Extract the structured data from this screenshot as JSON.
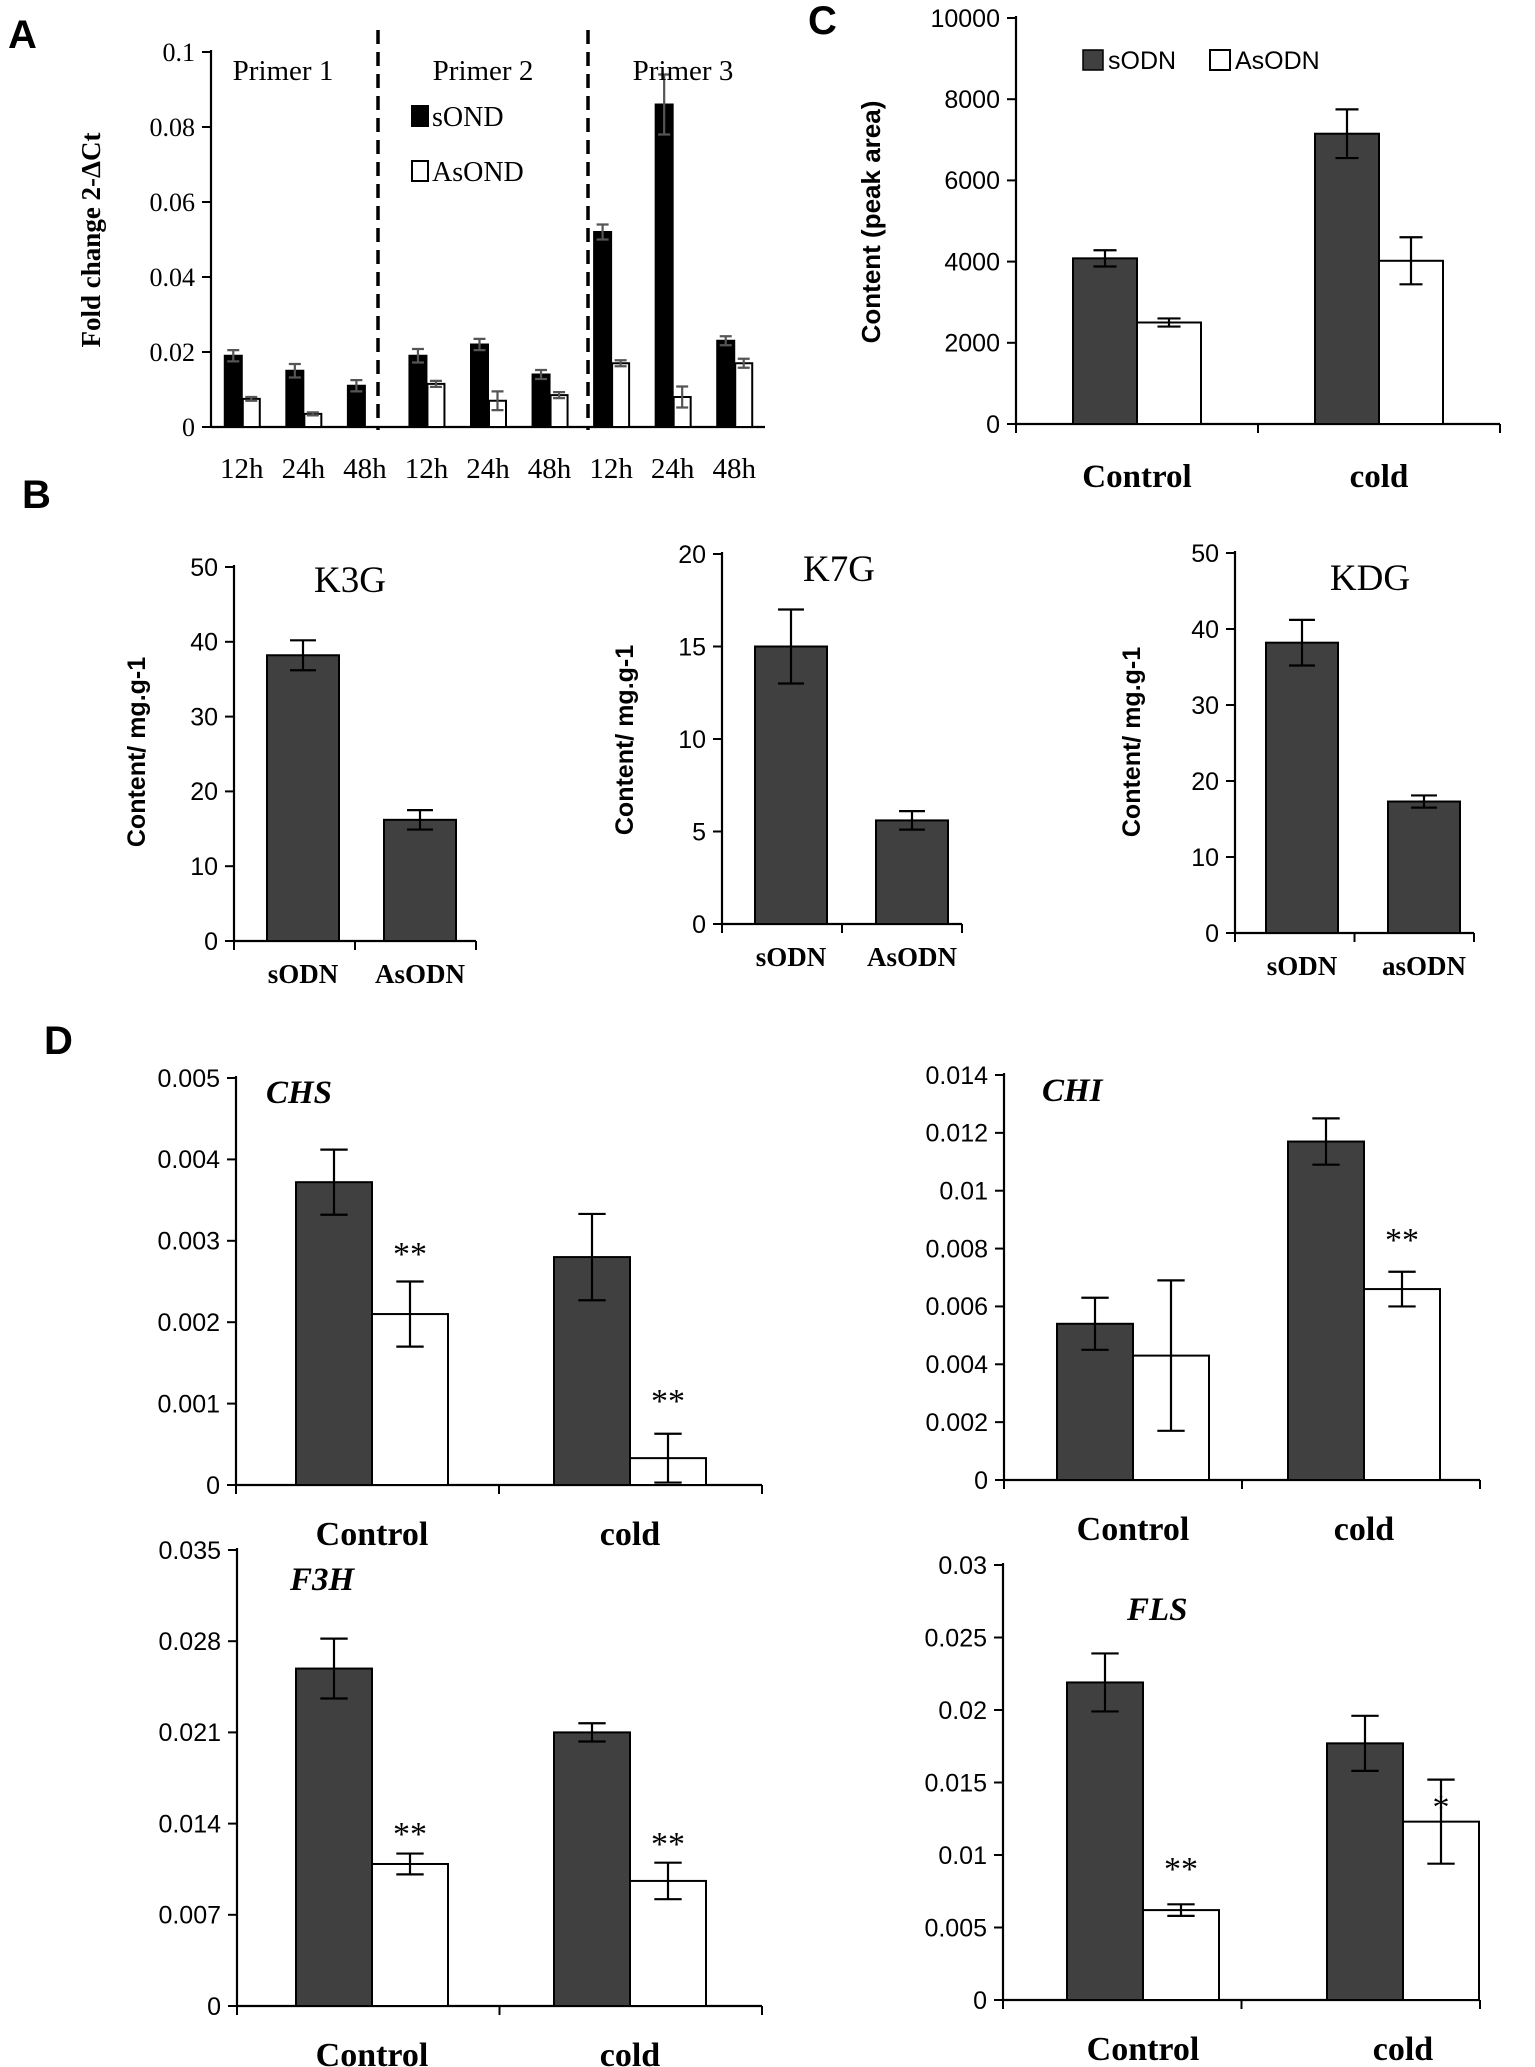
{
  "colors": {
    "s": "#404040",
    "as": "#ffffff",
    "solidA": "#000000",
    "stroke": "#000000"
  },
  "panels": {
    "A": "A",
    "B": "B",
    "C": "C",
    "D": "D"
  },
  "chart_data": [
    {
      "id": "A",
      "type": "bar",
      "ylabel": "Fold change 2-ΔCt",
      "ylim": [
        0,
        0.1
      ],
      "yticks": [
        "0",
        "0.02",
        "0.04",
        "0.06",
        "0.08",
        "0.1"
      ],
      "groups": [
        "Primer 1",
        "Primer 2",
        "Primer 3"
      ],
      "categories": [
        "12h",
        "24h",
        "48h",
        "12h",
        "24h",
        "48h",
        "12h",
        "24h",
        "48h"
      ],
      "legend": [
        "sOND",
        "AsOND"
      ],
      "series": [
        {
          "name": "sOND",
          "values": [
            0.019,
            0.015,
            0.011,
            0.019,
            0.022,
            0.014,
            0.052,
            0.086,
            0.023
          ],
          "errors": [
            0.0015,
            0.0018,
            0.0015,
            0.0018,
            0.0015,
            0.0012,
            0.002,
            0.008,
            0.0012
          ]
        },
        {
          "name": "AsOND",
          "values": [
            0.0075,
            0.0035,
            0.0,
            0.0115,
            0.007,
            0.0085,
            0.017,
            0.008,
            0.017
          ],
          "errors": [
            0.0005,
            0.0004,
            0.0,
            0.0008,
            0.0025,
            0.0008,
            0.0008,
            0.0028,
            0.0012
          ]
        }
      ]
    },
    {
      "id": "C",
      "type": "bar",
      "ylabel": "Content (peak area)",
      "ylim": [
        0,
        10000
      ],
      "yticks": [
        "0",
        "2000",
        "4000",
        "6000",
        "8000",
        "10000"
      ],
      "categories": [
        "Control",
        "cold"
      ],
      "legend": [
        "sODN",
        "AsODN"
      ],
      "series": [
        {
          "name": "sODN",
          "values": [
            4080,
            7150
          ],
          "errors": [
            200,
            600
          ]
        },
        {
          "name": "AsODN",
          "values": [
            2500,
            4020
          ],
          "errors": [
            100,
            580
          ]
        }
      ]
    },
    {
      "id": "B1",
      "type": "bar",
      "title": "K3G",
      "ylabel": "Content/ mg.g-1",
      "ylim": [
        0,
        50
      ],
      "yticks": [
        "0",
        "10",
        "20",
        "30",
        "40",
        "50"
      ],
      "categories": [
        "sODN",
        "AsODN"
      ],
      "values": [
        38.2,
        16.2
      ],
      "errors": [
        2.0,
        1.3
      ]
    },
    {
      "id": "B2",
      "type": "bar",
      "title": "K7G",
      "ylabel": "Content/ mg.g-1",
      "ylim": [
        0,
        20
      ],
      "yticks": [
        "0",
        "5",
        "10",
        "15",
        "20"
      ],
      "categories": [
        "sODN",
        "AsODN"
      ],
      "values": [
        15.0,
        5.6
      ],
      "errors": [
        2.0,
        0.5
      ]
    },
    {
      "id": "B3",
      "type": "bar",
      "title": "KDG",
      "ylabel": "Content/ mg.g-1",
      "ylim": [
        0,
        50
      ],
      "yticks": [
        "0",
        "10",
        "20",
        "30",
        "40",
        "50"
      ],
      "categories": [
        "sODN",
        "asODN"
      ],
      "values": [
        38.2,
        17.3
      ],
      "errors": [
        3.0,
        0.8
      ]
    },
    {
      "id": "D1",
      "type": "bar",
      "title": "CHS",
      "ylim": [
        0,
        0.005
      ],
      "yticks": [
        "0",
        "0.001",
        "0.002",
        "0.003",
        "0.004",
        "0.005"
      ],
      "categories": [
        "Control",
        "cold"
      ],
      "series": [
        {
          "name": "sODN",
          "values": [
            0.00372,
            0.0028
          ],
          "errors": [
            0.0004,
            0.00053
          ]
        },
        {
          "name": "AsODN",
          "values": [
            0.0021,
            0.00033
          ],
          "errors": [
            0.0004,
            0.0003
          ]
        }
      ],
      "annotations": [
        "**",
        "**"
      ]
    },
    {
      "id": "D2",
      "type": "bar",
      "title": "CHI",
      "ylim": [
        0,
        0.014
      ],
      "yticks": [
        "0",
        "0.002",
        "0.004",
        "0.006",
        "0.008",
        "0.01",
        "0.012",
        "0.014"
      ],
      "categories": [
        "Control",
        "cold"
      ],
      "series": [
        {
          "name": "sODN",
          "values": [
            0.0054,
            0.0117
          ],
          "errors": [
            0.0009,
            0.0008
          ]
        },
        {
          "name": "AsODN",
          "values": [
            0.0043,
            0.0066
          ],
          "errors": [
            0.0026,
            0.0006
          ]
        }
      ],
      "annotations": [
        "",
        "**"
      ]
    },
    {
      "id": "D3",
      "type": "bar",
      "title": "F3H",
      "ylim": [
        0,
        0.035
      ],
      "yticks": [
        "0",
        "0.007",
        "0.014",
        "0.021",
        "0.028",
        "0.035"
      ],
      "categories": [
        "Control",
        "cold"
      ],
      "series": [
        {
          "name": "sODN",
          "values": [
            0.0259,
            0.021
          ],
          "errors": [
            0.0023,
            0.0007
          ]
        },
        {
          "name": "AsODN",
          "values": [
            0.0109,
            0.0096
          ],
          "errors": [
            0.0008,
            0.0014
          ]
        }
      ],
      "annotations": [
        "**",
        "**"
      ]
    },
    {
      "id": "D4",
      "type": "bar",
      "title": "FLS",
      "ylim": [
        0,
        0.03
      ],
      "yticks": [
        "0",
        "0.005",
        "0.01",
        "0.015",
        "0.02",
        "0.025",
        "0.03"
      ],
      "categories": [
        "Control",
        "cold"
      ],
      "series": [
        {
          "name": "sODN",
          "values": [
            0.0219,
            0.0177
          ],
          "errors": [
            0.002,
            0.0019
          ]
        },
        {
          "name": "AsODN",
          "values": [
            0.0062,
            0.0123
          ],
          "errors": [
            0.0004,
            0.0029
          ]
        }
      ],
      "annotations": [
        "**",
        "*"
      ]
    }
  ]
}
